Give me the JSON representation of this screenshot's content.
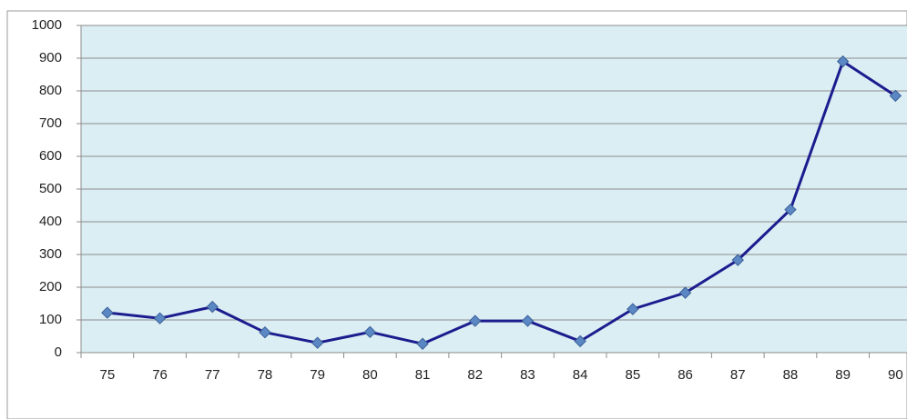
{
  "chart_data": {
    "type": "line",
    "categories": [
      "75",
      "76",
      "77",
      "78",
      "79",
      "80",
      "81",
      "82",
      "83",
      "84",
      "85",
      "86",
      "87",
      "88",
      "89",
      "90"
    ],
    "series": [
      {
        "color": "#1c1c8e",
        "marker_color": "#5b87c5",
        "values": [
          122,
          105,
          140,
          62,
          30,
          63,
          27,
          97,
          97,
          35,
          133,
          183,
          283,
          437,
          890,
          785
        ]
      }
    ],
    "ylim": [
      0,
      1000
    ],
    "yticks": [
      0,
      100,
      200,
      300,
      400,
      500,
      600,
      700,
      800,
      900,
      1000
    ],
    "grid": true
  }
}
